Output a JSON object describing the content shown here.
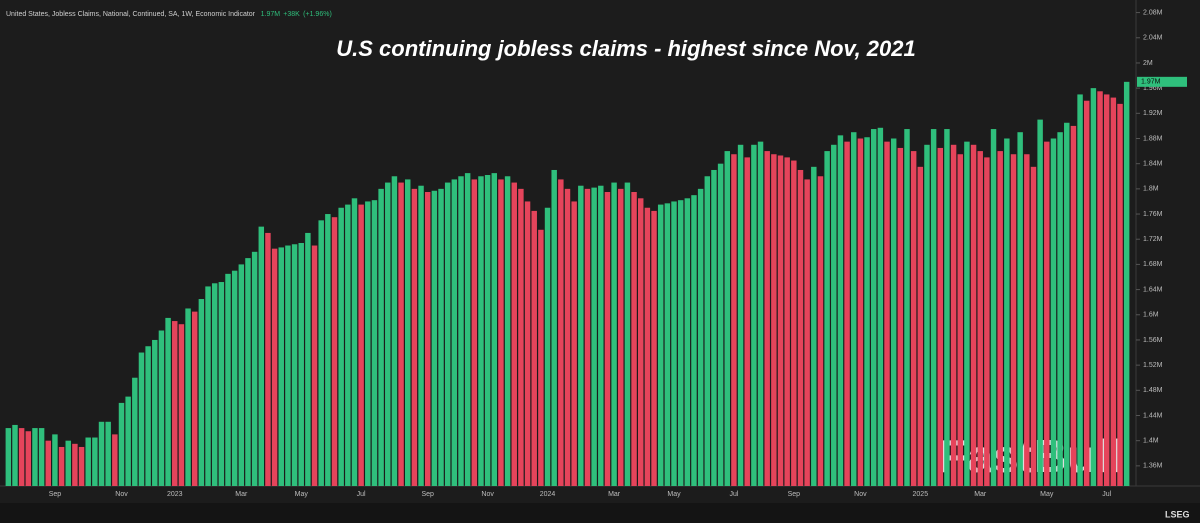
{
  "header": {
    "series_name": "United States, Jobless Claims, National, Continued, SA, 1W, Economic Indicator",
    "last": "1.97M",
    "change": "+38K",
    "change_pct": "(+1.96%)"
  },
  "watermark": "FastBull",
  "footer_logo": "LSEG",
  "chart_data": {
    "type": "bar",
    "title": "U.S continuing jobless claims - highest since Nov, 2021",
    "up_color": "#2fbf7c",
    "down_color": "#e5445b",
    "categories": [
      null,
      null,
      null,
      null,
      null,
      null,
      null,
      "Sep",
      null,
      null,
      null,
      null,
      null,
      null,
      null,
      null,
      null,
      "Nov",
      null,
      null,
      null,
      null,
      null,
      null,
      null,
      "2023",
      null,
      null,
      null,
      null,
      null,
      null,
      null,
      null,
      null,
      "Mar",
      null,
      null,
      null,
      null,
      null,
      null,
      null,
      null,
      "May",
      null,
      null,
      null,
      null,
      null,
      null,
      null,
      null,
      "Jul",
      null,
      null,
      null,
      null,
      null,
      null,
      null,
      null,
      null,
      "Sep",
      null,
      null,
      null,
      null,
      null,
      null,
      null,
      null,
      "Nov",
      null,
      null,
      null,
      null,
      null,
      null,
      null,
      null,
      "2024",
      null,
      null,
      null,
      null,
      null,
      null,
      null,
      null,
      null,
      "Mar",
      null,
      null,
      null,
      null,
      null,
      null,
      null,
      null,
      "May",
      null,
      null,
      null,
      null,
      null,
      null,
      null,
      null,
      "Jul",
      null,
      null,
      null,
      null,
      null,
      null,
      null,
      null,
      "Sep",
      null,
      null,
      null,
      null,
      null,
      null,
      null,
      null,
      null,
      "Nov",
      null,
      null,
      null,
      null,
      null,
      null,
      null,
      null,
      "2025",
      null,
      null,
      null,
      null,
      null,
      null,
      null,
      null,
      "Mar",
      null,
      null,
      null,
      null,
      null,
      null,
      null,
      null,
      null,
      "May",
      null,
      null,
      null,
      null,
      null,
      null,
      null,
      null,
      "Jul",
      null,
      null,
      null
    ],
    "values": [
      1.42,
      1.425,
      1.42,
      1.415,
      1.42,
      1.42,
      1.4,
      1.41,
      1.39,
      1.4,
      1.395,
      1.39,
      1.405,
      1.405,
      1.43,
      1.43,
      1.41,
      1.46,
      1.47,
      1.5,
      1.54,
      1.55,
      1.56,
      1.575,
      1.595,
      1.59,
      1.585,
      1.61,
      1.605,
      1.625,
      1.645,
      1.65,
      1.652,
      1.665,
      1.67,
      1.68,
      1.69,
      1.7,
      1.74,
      1.73,
      1.705,
      1.707,
      1.71,
      1.712,
      1.714,
      1.73,
      1.71,
      1.75,
      1.76,
      1.755,
      1.77,
      1.775,
      1.785,
      1.775,
      1.78,
      1.782,
      1.8,
      1.81,
      1.82,
      1.81,
      1.815,
      1.8,
      1.805,
      1.795,
      1.797,
      1.8,
      1.81,
      1.815,
      1.82,
      1.825,
      1.815,
      1.82,
      1.822,
      1.825,
      1.815,
      1.82,
      1.81,
      1.8,
      1.78,
      1.765,
      1.735,
      1.77,
      1.83,
      1.815,
      1.8,
      1.78,
      1.805,
      1.8,
      1.802,
      1.805,
      1.795,
      1.81,
      1.8,
      1.81,
      1.795,
      1.785,
      1.77,
      1.765,
      1.775,
      1.777,
      1.78,
      1.782,
      1.785,
      1.79,
      1.8,
      1.82,
      1.83,
      1.84,
      1.86,
      1.855,
      1.87,
      1.85,
      1.87,
      1.875,
      1.86,
      1.855,
      1.853,
      1.85,
      1.845,
      1.83,
      1.815,
      1.835,
      1.82,
      1.86,
      1.87,
      1.885,
      1.875,
      1.89,
      1.88,
      1.882,
      1.895,
      1.897,
      1.875,
      1.88,
      1.865,
      1.895,
      1.86,
      1.835,
      1.87,
      1.895,
      1.865,
      1.895,
      1.87,
      1.855,
      1.875,
      1.87,
      1.86,
      1.85,
      1.895,
      1.86,
      1.88,
      1.855,
      1.89,
      1.855,
      1.835,
      1.91,
      1.875,
      1.88,
      1.89,
      1.905,
      1.9,
      1.95,
      1.94,
      1.96,
      1.955,
      1.95,
      1.945,
      1.935,
      1.97
    ],
    "ylim": [
      1.328,
      2.1
    ],
    "yticks": [
      {
        "value": 2.08,
        "label": "2.08M"
      },
      {
        "value": 2.04,
        "label": "2.04M"
      },
      {
        "value": 2.0,
        "label": "2M"
      },
      {
        "value": 1.96,
        "label": "1.96M"
      },
      {
        "value": 1.92,
        "label": "1.92M"
      },
      {
        "value": 1.88,
        "label": "1.88M"
      },
      {
        "value": 1.84,
        "label": "1.84M"
      },
      {
        "value": 1.8,
        "label": "1.8M"
      },
      {
        "value": 1.76,
        "label": "1.76M"
      },
      {
        "value": 1.72,
        "label": "1.72M"
      },
      {
        "value": 1.68,
        "label": "1.68M"
      },
      {
        "value": 1.64,
        "label": "1.64M"
      },
      {
        "value": 1.6,
        "label": "1.6M"
      },
      {
        "value": 1.56,
        "label": "1.56M"
      },
      {
        "value": 1.52,
        "label": "1.52M"
      },
      {
        "value": 1.48,
        "label": "1.48M"
      },
      {
        "value": 1.44,
        "label": "1.44M"
      },
      {
        "value": 1.4,
        "label": "1.4M"
      },
      {
        "value": 1.36,
        "label": "1.36M"
      }
    ],
    "grid": false
  }
}
